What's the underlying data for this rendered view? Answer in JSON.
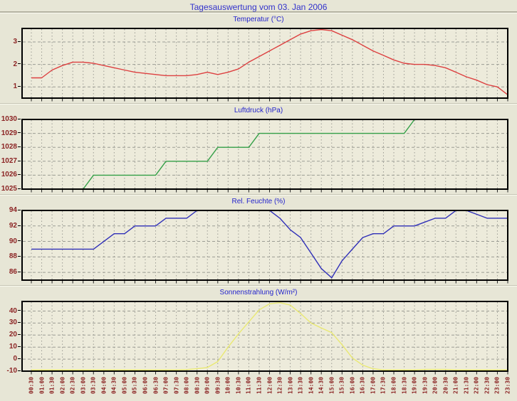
{
  "page": {
    "title": "Tagesauswertung vom 03. Jan 2006"
  },
  "colors": {
    "page_bg": "#e7e6d6",
    "plot_bg": "#edebdb",
    "grid": "#9c9c94",
    "frame": "#000000",
    "tick": "#222222",
    "axis_label": "#8b2323",
    "title_blue": "#2424cc"
  },
  "times": [
    "00:30",
    "01:00",
    "01:30",
    "02:00",
    "02:30",
    "03:00",
    "03:30",
    "04:00",
    "04:30",
    "05:00",
    "05:30",
    "06:00",
    "06:30",
    "07:00",
    "07:30",
    "08:00",
    "08:30",
    "09:00",
    "09:30",
    "10:00",
    "10:30",
    "11:00",
    "11:30",
    "12:00",
    "12:30",
    "13:00",
    "13:30",
    "14:00",
    "14:30",
    "15:00",
    "15:30",
    "16:00",
    "16:30",
    "17:00",
    "17:30",
    "18:00",
    "18:30",
    "19:00",
    "19:30",
    "20:00",
    "20:30",
    "21:00",
    "21:30",
    "22:00",
    "22:30",
    "23:00",
    "23:30"
  ],
  "chart_data": [
    {
      "type": "line",
      "title": "Temperatur (°C)",
      "color": "#dd4040",
      "ylim": [
        0.5,
        3.6
      ],
      "yticks": [
        1,
        2,
        3
      ],
      "grid": true,
      "values": [
        1.4,
        1.4,
        1.75,
        1.95,
        2.1,
        2.1,
        2.05,
        1.95,
        1.85,
        1.75,
        1.65,
        1.6,
        1.55,
        1.5,
        1.5,
        1.5,
        1.55,
        1.65,
        1.55,
        1.65,
        1.8,
        2.1,
        2.35,
        2.6,
        2.85,
        3.1,
        3.35,
        3.5,
        3.55,
        3.5,
        3.3,
        3.1,
        2.85,
        2.6,
        2.4,
        2.2,
        2.05,
        2.0,
        2.0,
        1.95,
        1.85,
        1.65,
        1.45,
        1.3,
        1.1,
        1.0,
        0.65
      ]
    },
    {
      "type": "line",
      "title": "Luftdruck (hPa)",
      "color": "#35a048",
      "ylim": [
        1025,
        1030
      ],
      "yticks": [
        1025,
        1026,
        1027,
        1028,
        1029,
        1030
      ],
      "grid": true,
      "values": [
        1025,
        1025,
        1025,
        1025,
        1025,
        1025,
        1026,
        1026,
        1026,
        1026,
        1026,
        1026,
        1026,
        1027,
        1027,
        1027,
        1027,
        1027,
        1028,
        1028,
        1028,
        1028,
        1029,
        1029,
        1029,
        1029,
        1029,
        1029,
        1029,
        1029,
        1029,
        1029,
        1029,
        1029,
        1029,
        1029,
        1029,
        1030,
        null,
        null,
        null,
        null,
        null,
        null,
        null,
        null,
        null
      ]
    },
    {
      "type": "line",
      "title": "Rel. Feuchte (%)",
      "color": "#3030b8",
      "ylim": [
        85,
        94
      ],
      "yticks": [
        86,
        88,
        90,
        92,
        94
      ],
      "grid": true,
      "values": [
        89,
        89,
        89,
        89,
        89,
        89,
        89,
        90,
        91,
        91,
        92,
        92,
        92,
        93,
        93,
        93,
        94,
        94,
        94,
        94,
        94,
        94,
        94,
        94,
        93,
        91.5,
        90.5,
        88.5,
        86.5,
        85.3,
        87.5,
        89,
        90.5,
        91,
        91,
        92,
        92,
        92,
        92.5,
        93,
        93,
        94,
        94,
        93.5,
        93,
        93,
        93
      ]
    },
    {
      "type": "line",
      "title": "Sonnenstrahlung (W/m²)",
      "color": "#e9e972",
      "ylim": [
        -10,
        48
      ],
      "yticks": [
        -10,
        0,
        10,
        20,
        30,
        40
      ],
      "grid": true,
      "values": [
        -9,
        -9,
        -9,
        -9,
        -9,
        -9,
        -9,
        -9,
        -9,
        -9,
        -9,
        -9,
        -9,
        -9,
        -9,
        -8.7,
        -8,
        -7,
        -2,
        10,
        21,
        31,
        41,
        46,
        47,
        45,
        38,
        30,
        26,
        22,
        12,
        1,
        -5,
        -8,
        -9,
        -9,
        -9,
        -9,
        -8.6,
        -8.6,
        -8.6,
        -9,
        -9,
        -9,
        -9,
        -9,
        -9
      ]
    }
  ]
}
